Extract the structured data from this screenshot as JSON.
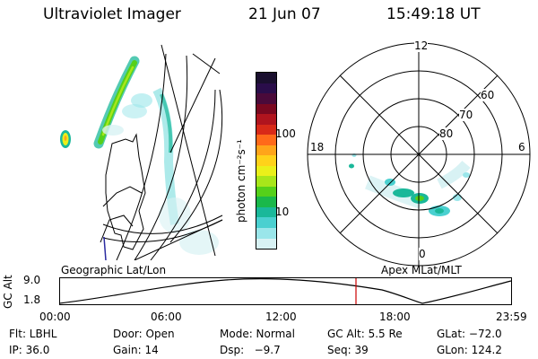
{
  "header": {
    "instrument": "Ultraviolet Imager",
    "date": "21 Jun 07",
    "time": "15:49:18 UT"
  },
  "colorbar": {
    "unit_label": "photon cm⁻²s⁻¹",
    "ticks": [
      "100",
      "10"
    ],
    "colors": [
      "#1a0f2e",
      "#2a0d4a",
      "#4a0a3a",
      "#7a0820",
      "#b0141e",
      "#d82a18",
      "#ff6a1a",
      "#ffa51a",
      "#ffd21a",
      "#eaf01a",
      "#a8e61a",
      "#55d01a",
      "#1ab84a",
      "#1ab89a",
      "#4ad0d0",
      "#9ae6ea",
      "#d8f2f4"
    ]
  },
  "polar": {
    "mlt_labels": {
      "top": "12",
      "left": "18",
      "right": "6",
      "bottom": "0"
    },
    "lat_labels": [
      "60",
      "70",
      "80"
    ]
  },
  "panel_labels": {
    "left": "Geographic Lat/Lon",
    "right": "Apex MLat/MLT"
  },
  "alt_plot": {
    "ylabel": "GC Alt",
    "y_ticks": [
      "9.0",
      "1.8"
    ],
    "x_ticks": [
      "00:00",
      "06:00",
      "12:00",
      "18:00",
      "23:59"
    ]
  },
  "info": {
    "row1": {
      "filter": "Flt: LBHL",
      "door": "Door: Open",
      "mode": "Mode: Normal",
      "gc_alt": "GC Alt: 5.5 Re",
      "glat": "GLat: −72.0"
    },
    "row2": {
      "ip": "IP: 36.0",
      "gain": "Gain: 14",
      "dsp": "Dsp:   −9.7",
      "seq": "Seq: 39",
      "glon": "GLon: 124.2"
    }
  },
  "colors": {
    "marker": "#cc0000",
    "trace": "#000000",
    "coast": "#000000",
    "blue_line": "#2a2aa0"
  }
}
